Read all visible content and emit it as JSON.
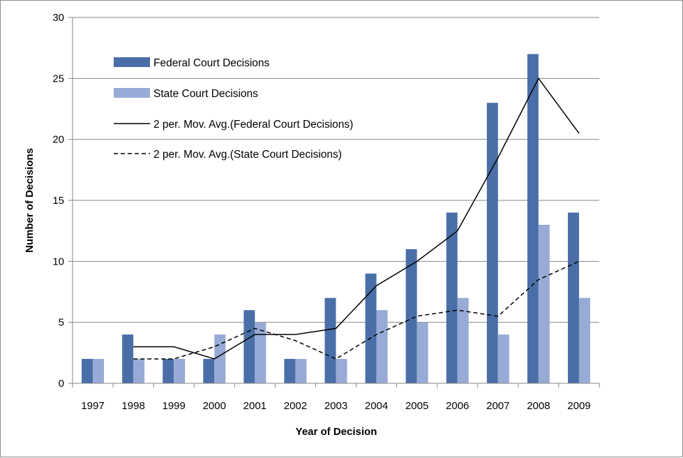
{
  "chart_data": {
    "type": "bar",
    "xlabel": "Year of Decision",
    "ylabel": "Number of Decisions",
    "ylim": [
      0,
      30
    ],
    "yticks": [
      0,
      5,
      10,
      15,
      20,
      25,
      30
    ],
    "grid": "horizontal",
    "legend_position": "top-left (inside plot)",
    "categories": [
      "1997",
      "1998",
      "1999",
      "2000",
      "2001",
      "2002",
      "2003",
      "2004",
      "2005",
      "2006",
      "2007",
      "2008",
      "2009"
    ],
    "series": [
      {
        "name": "Federal Court Decisions",
        "type": "bar",
        "color": "#4a6fa8",
        "values": [
          2,
          4,
          2,
          2,
          6,
          2,
          7,
          9,
          11,
          14,
          23,
          27,
          14
        ]
      },
      {
        "name": "State Court Decisions",
        "type": "bar",
        "color": "#98abd6",
        "values": [
          2,
          2,
          2,
          4,
          5,
          2,
          2,
          6,
          5,
          7,
          4,
          13,
          7
        ]
      },
      {
        "name": "2 per. Mov. Avg.(Federal Court Decisions)",
        "type": "line",
        "style": "solid",
        "color": "#000000",
        "values": [
          null,
          3,
          3,
          2,
          4,
          4,
          4.5,
          8,
          10,
          12.5,
          18.5,
          25,
          20.5
        ]
      },
      {
        "name": "2 per. Mov. Avg.(State Court Decisions)",
        "type": "line",
        "style": "dashed",
        "color": "#000000",
        "values": [
          null,
          2,
          2,
          3,
          4.5,
          3.5,
          2,
          4,
          5.5,
          6,
          5.5,
          8.5,
          10
        ]
      }
    ]
  }
}
